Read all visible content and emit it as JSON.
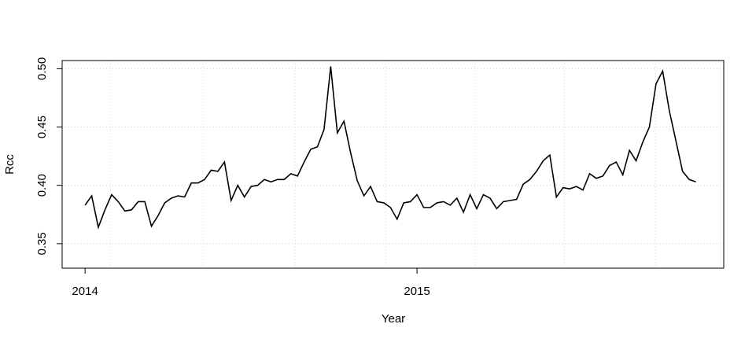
{
  "chart_data": {
    "type": "line",
    "xlabel": "Year",
    "ylabel": "Rcc",
    "x": [
      2014.0,
      2014.02,
      2014.04,
      2014.06,
      2014.08,
      2014.1,
      2014.12,
      2014.14,
      2014.16,
      2014.18,
      2014.2,
      2014.22,
      2014.24,
      2014.26,
      2014.28,
      2014.3,
      2014.32,
      2014.34,
      2014.36,
      2014.38,
      2014.4,
      2014.42,
      2014.44,
      2014.46,
      2014.48,
      2014.5,
      2014.52,
      2014.54,
      2014.56,
      2014.58,
      2014.6,
      2014.62,
      2014.64,
      2014.66,
      2014.68,
      2014.7,
      2014.72,
      2014.74,
      2014.76,
      2014.78,
      2014.8,
      2014.82,
      2014.84,
      2014.86,
      2014.88,
      2014.9,
      2014.92,
      2014.94,
      2014.96,
      2014.98,
      2015.0,
      2015.02,
      2015.04,
      2015.06,
      2015.08,
      2015.1,
      2015.12,
      2015.14,
      2015.16,
      2015.18,
      2015.2,
      2015.22,
      2015.24,
      2015.26,
      2015.28,
      2015.3,
      2015.32,
      2015.34,
      2015.36,
      2015.38,
      2015.4,
      2015.42,
      2015.44,
      2015.46,
      2015.48,
      2015.5,
      2015.52,
      2015.54,
      2015.56,
      2015.58,
      2015.6,
      2015.62,
      2015.64,
      2015.66,
      2015.68,
      2015.7,
      2015.72,
      2015.74,
      2015.76,
      2015.78,
      2015.8,
      2015.82,
      2015.84
    ],
    "values": [
      0.383,
      0.391,
      0.364,
      0.379,
      0.392,
      0.386,
      0.378,
      0.379,
      0.386,
      0.386,
      0.365,
      0.374,
      0.385,
      0.389,
      0.391,
      0.39,
      0.402,
      0.402,
      0.405,
      0.413,
      0.412,
      0.42,
      0.387,
      0.4,
      0.39,
      0.399,
      0.4,
      0.405,
      0.403,
      0.405,
      0.405,
      0.41,
      0.408,
      0.42,
      0.431,
      0.433,
      0.448,
      0.502,
      0.445,
      0.455,
      0.428,
      0.404,
      0.391,
      0.399,
      0.386,
      0.385,
      0.381,
      0.371,
      0.385,
      0.386,
      0.392,
      0.381,
      0.381,
      0.385,
      0.386,
      0.383,
      0.389,
      0.377,
      0.392,
      0.38,
      0.392,
      0.389,
      0.38,
      0.386,
      0.387,
      0.388,
      0.401,
      0.405,
      0.412,
      0.421,
      0.426,
      0.39,
      0.398,
      0.397,
      0.399,
      0.396,
      0.41,
      0.406,
      0.408,
      0.417,
      0.42,
      0.409,
      0.43,
      0.421,
      0.437,
      0.45,
      0.487,
      0.498,
      0.464,
      0.438,
      0.412,
      0.405,
      0.403
    ],
    "color": "#000000",
    "xlim": [
      2013.931,
      2015.924
    ],
    "ylim": [
      0.329,
      0.507
    ],
    "xticks": [
      2014,
      2015
    ],
    "yticks": [
      0.35,
      {
        "value": 0.4,
        "label": "0.40"
      },
      0.45,
      {
        "value": 0.5,
        "label": "0.50"
      }
    ],
    "xgrid": [
      2014.076,
      2014.355,
      2014.633,
      2014.905,
      2015.175,
      2015.443,
      2015.718
    ],
    "grid": true
  }
}
